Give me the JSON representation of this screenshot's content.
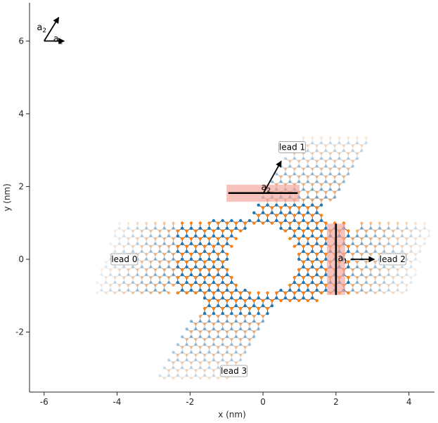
{
  "axes": {
    "xlabel": "x (nm)",
    "ylabel": "y (nm)",
    "xlim": [
      -6.4,
      4.7
    ],
    "ylim": [
      -3.65,
      7.05
    ],
    "xticks": [
      -6,
      -4,
      -2,
      0,
      2,
      4
    ],
    "yticks": [
      -2,
      0,
      2,
      4,
      6
    ],
    "xtick_labels": [
      "-6",
      "-4",
      "-2",
      "0",
      "2",
      "4"
    ],
    "ytick_labels": [
      "-2",
      "0",
      "2",
      "4",
      "6"
    ]
  },
  "leads": [
    {
      "label": "lead 0",
      "x": -3.8,
      "y": 0.0
    },
    {
      "label": "lead 1",
      "x": 0.8,
      "y": 3.08
    },
    {
      "label": "lead 2",
      "x": 3.55,
      "y": 0.0
    },
    {
      "label": "lead 3",
      "x": -0.8,
      "y": -3.07
    }
  ],
  "lattice_vectors": [
    {
      "name": "a",
      "sub": "1",
      "x0": -6.0,
      "y0": 6.0,
      "x1": -5.45,
      "y1": 6.0
    },
    {
      "name": "a",
      "sub": "2",
      "x0": -6.0,
      "y0": 6.0,
      "x1": -5.6,
      "y1": 6.65
    }
  ],
  "lead_vectors": [
    {
      "name": "a",
      "sub": "1",
      "x0": 2.4,
      "y0": 0.0,
      "x1": 3.05,
      "y1": 0.0
    },
    {
      "name": "a",
      "sub": "2",
      "x0": 0.0,
      "y0": 1.8,
      "x1": 0.5,
      "y1": 2.7
    }
  ],
  "lead_cells": [
    {
      "x0": -1.0,
      "x1": 1.0,
      "y0": 1.58,
      "y1": 2.05,
      "line_y": 1.82
    },
    {
      "x0": 1.75,
      "x1": 2.25,
      "y0": -0.98,
      "y1": 0.98,
      "line_x": 2.0
    }
  ],
  "colors": {
    "sublattice_a": "#1f77b4",
    "sublattice_b": "#ff7f0e",
    "bond": "#2a2a2a",
    "lead_highlight": "#f4a6a0",
    "lead_line": "#000000"
  },
  "scatter_region": {
    "hole_radius": 0.9,
    "core": {
      "x_half": 1.55,
      "y_half": 1.05
    }
  }
}
